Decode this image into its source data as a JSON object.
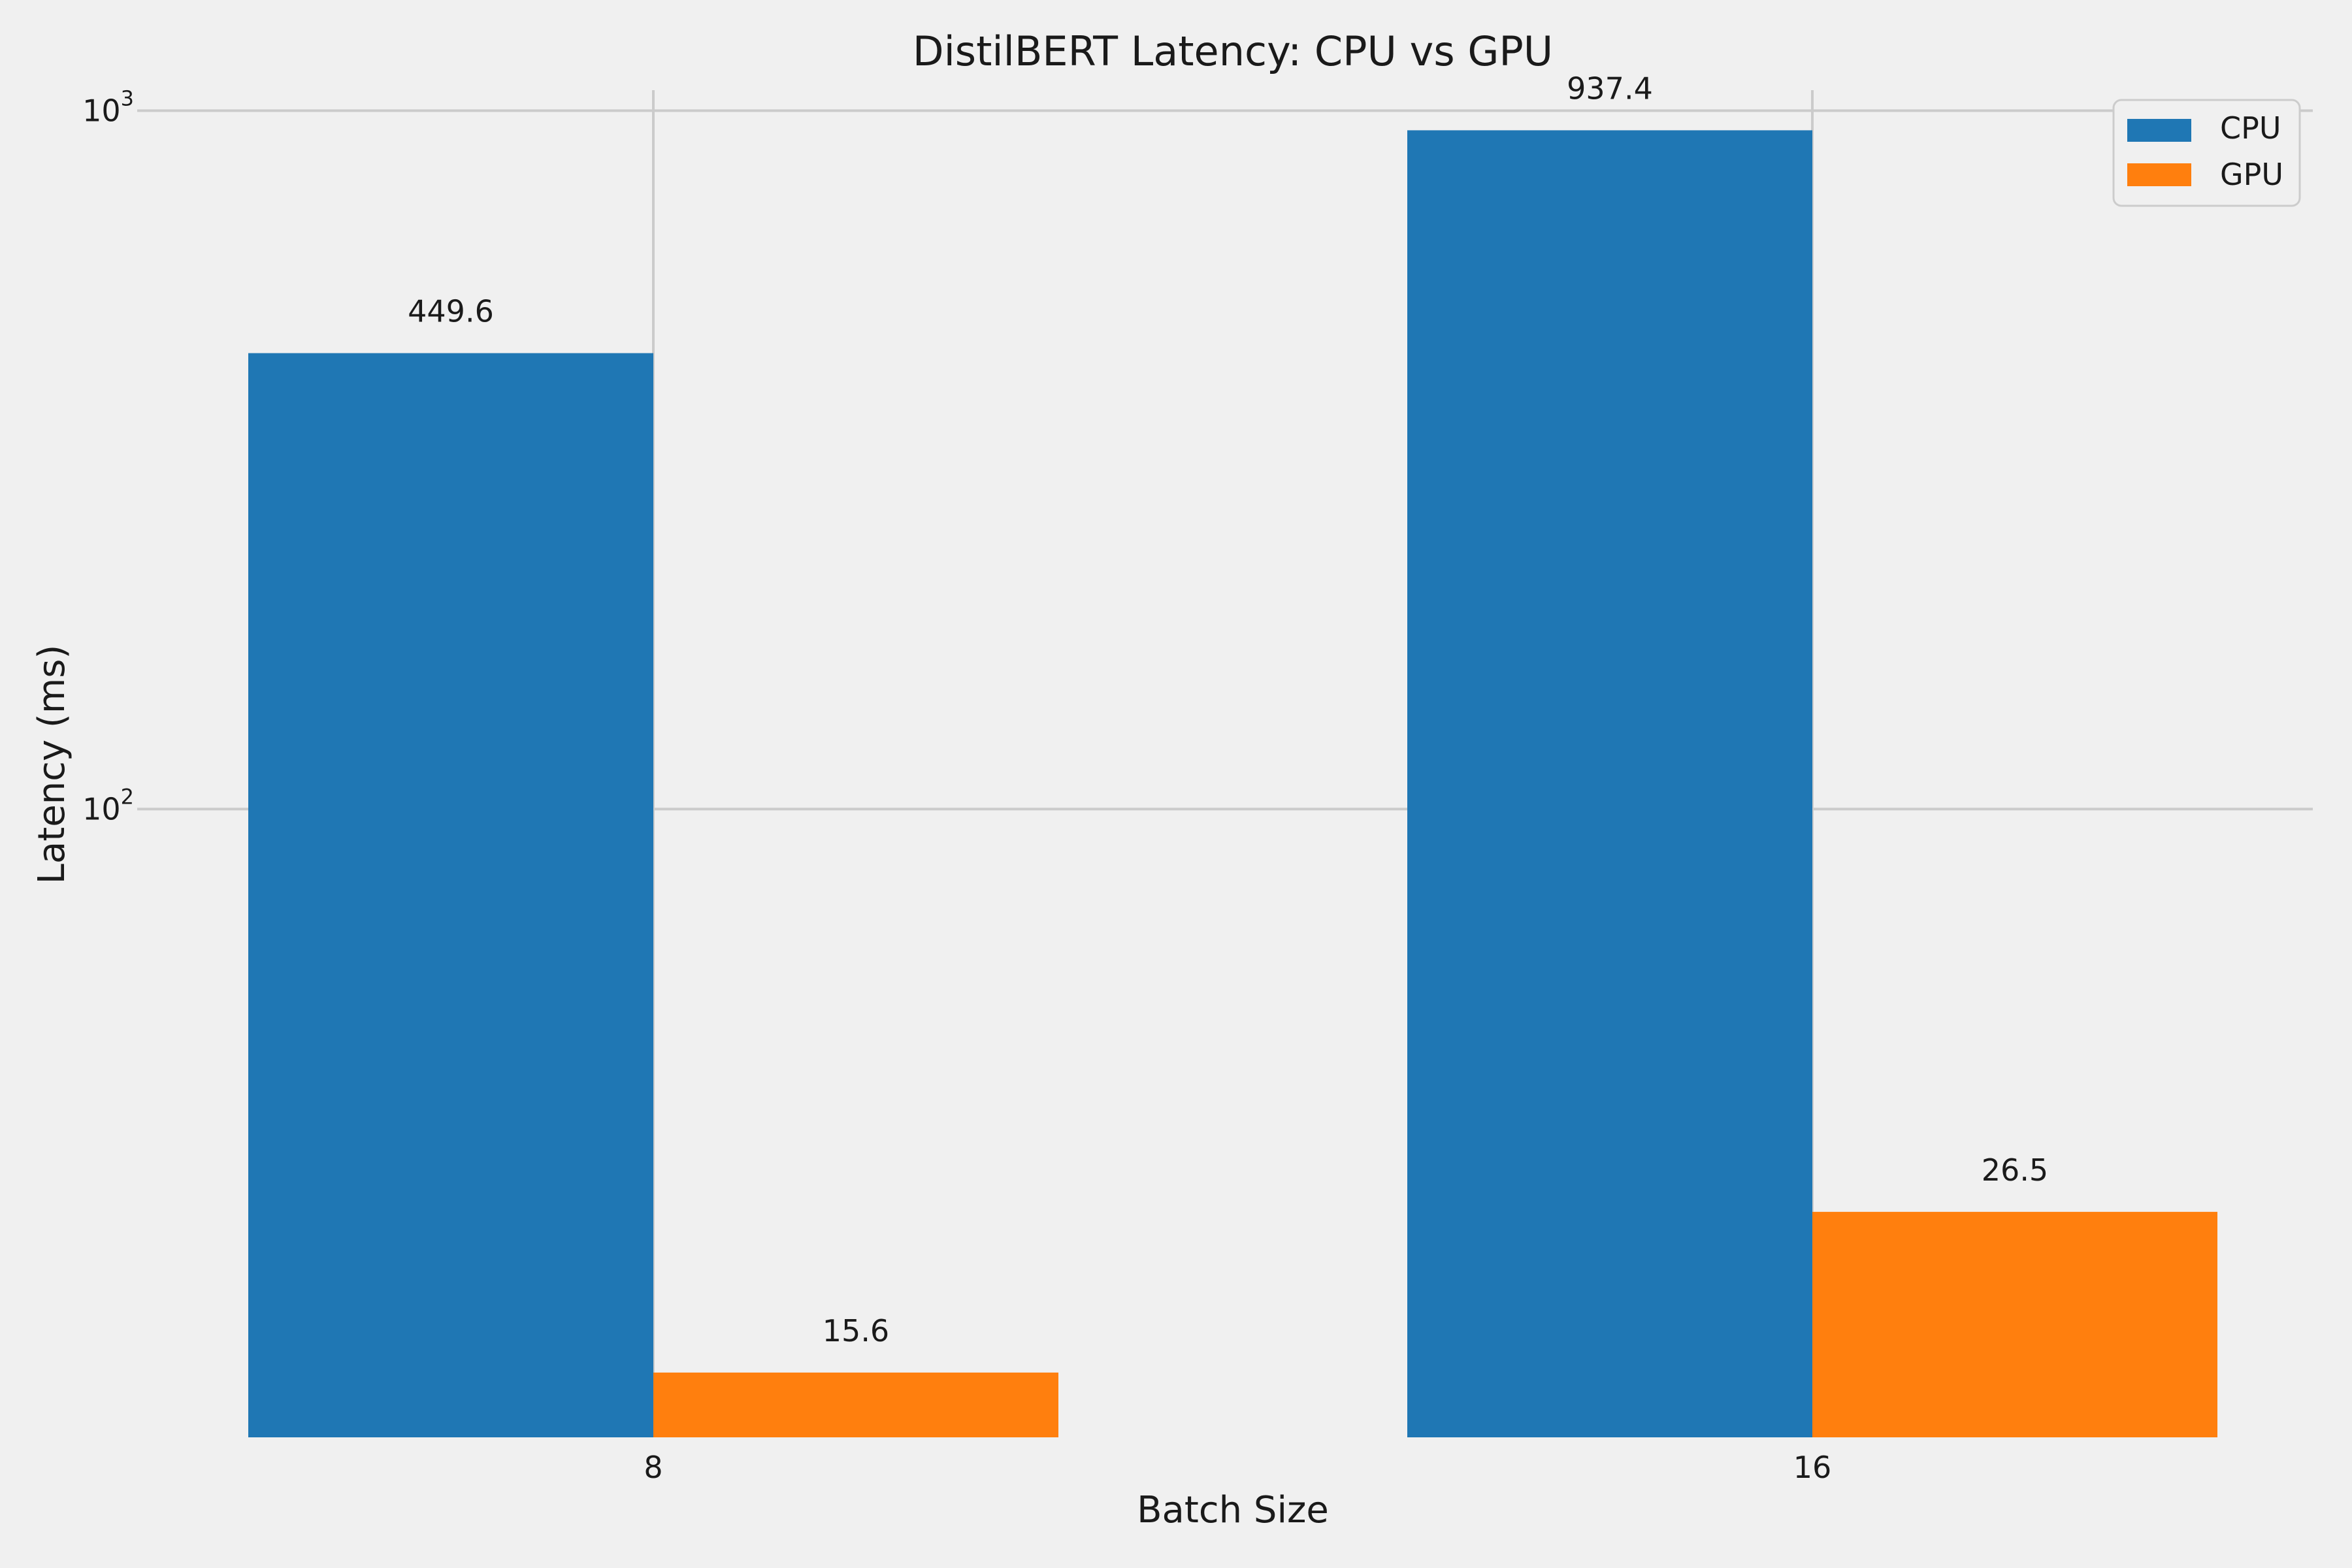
{
  "chart_data": {
    "type": "bar",
    "title": "DistilBERT Latency: CPU vs GPU",
    "xlabel": "Batch Size",
    "ylabel": "Latency (ms)",
    "categories": [
      "8",
      "16"
    ],
    "y_scale": "log",
    "ylim": [
      12.6,
      1070
    ],
    "y_ticks": [
      {
        "value": 100,
        "base": "10",
        "exp": "2"
      },
      {
        "value": 1000,
        "base": "10",
        "exp": "3"
      }
    ],
    "grid": true,
    "legend_position": "top-right",
    "series": [
      {
        "name": "CPU",
        "color": "#1f77b4",
        "values": [
          449.6,
          937.4
        ],
        "labels": [
          "449.6",
          "937.4"
        ]
      },
      {
        "name": "GPU",
        "color": "#ff7f0e",
        "values": [
          15.6,
          26.5
        ],
        "labels": [
          "15.6",
          "26.5"
        ]
      }
    ]
  }
}
